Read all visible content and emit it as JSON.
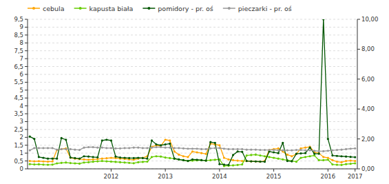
{
  "chart_data": {
    "type": "line",
    "categories": [
      null,
      null,
      null,
      null,
      null,
      null,
      null,
      null,
      null,
      null,
      null,
      null,
      null,
      null,
      null,
      null,
      null,
      null,
      "2012",
      null,
      null,
      null,
      null,
      null,
      null,
      null,
      null,
      null,
      null,
      null,
      "2013",
      null,
      null,
      null,
      null,
      null,
      null,
      null,
      null,
      null,
      null,
      null,
      "2014",
      null,
      null,
      null,
      null,
      null,
      null,
      null,
      null,
      null,
      null,
      null,
      "2015",
      null,
      null,
      null,
      null,
      null,
      null,
      null,
      null,
      null,
      null,
      null,
      "2016",
      null,
      null,
      null,
      null,
      null,
      "2017"
    ],
    "series": [
      {
        "name": "cebula",
        "color": "#FFA500",
        "marker": "circle",
        "values": [
          0.5,
          0.48,
          0.49,
          0.47,
          0.46,
          0.47,
          1.2,
          1.25,
          1.3,
          0.7,
          0.65,
          0.62,
          0.6,
          0.58,
          0.6,
          0.62,
          0.65,
          0.67,
          0.7,
          0.68,
          0.65,
          0.63,
          0.6,
          0.58,
          0.65,
          0.7,
          0.8,
          1.4,
          1.5,
          1.45,
          1.85,
          1.8,
          1.1,
          0.9,
          0.8,
          0.75,
          1.1,
          1.05,
          1.0,
          0.95,
          1.6,
          1.55,
          1.5,
          0.7,
          0.6,
          0.55,
          0.52,
          0.5,
          0.5,
          0.48,
          0.47,
          0.45,
          0.5,
          1.2,
          1.25,
          1.3,
          1.1,
          0.9,
          0.8,
          0.95,
          1.3,
          1.35,
          1.4,
          1.05,
          1.0,
          0.75,
          0.7,
          0.55,
          0.45,
          0.42,
          0.5,
          0.52,
          0.5
        ]
      },
      {
        "name": "kapusta biała",
        "color": "#66CC00",
        "marker": "circle",
        "values": [
          0.3,
          0.28,
          0.29,
          0.27,
          0.26,
          0.27,
          0.35,
          0.38,
          0.4,
          0.37,
          0.35,
          0.33,
          0.4,
          0.42,
          0.45,
          0.48,
          0.5,
          0.48,
          0.46,
          0.44,
          0.42,
          0.4,
          0.38,
          0.36,
          0.42,
          0.44,
          0.46,
          0.75,
          0.8,
          0.78,
          0.72,
          0.68,
          0.65,
          0.6,
          0.55,
          0.5,
          0.52,
          0.54,
          0.55,
          0.53,
          0.55,
          0.58,
          0.6,
          0.18,
          0.2,
          0.22,
          0.25,
          0.28,
          0.85,
          0.88,
          0.9,
          0.85,
          0.8,
          0.75,
          0.7,
          0.65,
          0.6,
          0.55,
          0.5,
          0.45,
          0.7,
          0.75,
          0.8,
          0.85,
          0.55,
          0.55,
          0.58,
          0.28,
          0.26,
          0.25,
          0.3,
          0.32,
          0.35
        ]
      },
      {
        "name": "pomidory - pr. oś",
        "color": "#005500",
        "marker": "circle",
        "values": [
          2.05,
          1.9,
          0.75,
          0.7,
          0.65,
          0.65,
          0.65,
          1.95,
          1.85,
          0.72,
          0.68,
          0.65,
          0.8,
          0.78,
          0.75,
          0.73,
          1.8,
          1.85,
          1.8,
          0.78,
          0.72,
          0.7,
          0.68,
          0.68,
          0.7,
          0.68,
          0.65,
          1.8,
          1.55,
          1.5,
          1.55,
          1.6,
          0.65,
          0.6,
          0.55,
          0.5,
          0.6,
          0.58,
          0.55,
          0.52,
          1.7,
          1.65,
          0.3,
          0.27,
          0.25,
          0.88,
          1.1,
          1.08,
          0.5,
          0.48,
          0.47,
          0.46,
          0.45,
          1.1,
          1.05,
          1.0,
          1.65,
          0.5,
          0.48,
          0.96,
          0.98,
          1.0,
          1.35,
          0.96,
          0.96,
          9.5,
          1.9,
          0.85,
          0.82,
          0.8,
          0.78,
          0.76,
          0.74
        ]
      },
      {
        "name": "pieczarki - pr. oś",
        "color": "#999999",
        "marker": "circle",
        "values": [
          1.18,
          1.32,
          1.32,
          1.32,
          1.32,
          1.32,
          1.22,
          1.25,
          1.25,
          1.25,
          1.22,
          1.2,
          1.35,
          1.38,
          1.38,
          1.35,
          1.35,
          1.32,
          1.32,
          1.3,
          1.3,
          1.32,
          1.32,
          1.35,
          1.35,
          1.32,
          1.32,
          1.35,
          1.38,
          1.38,
          1.35,
          1.35,
          1.32,
          1.32,
          1.3,
          1.28,
          1.28,
          1.28,
          1.25,
          1.25,
          1.3,
          1.32,
          1.32,
          1.28,
          1.25,
          1.25,
          1.25,
          1.25,
          1.22,
          1.22,
          1.22,
          1.2,
          1.2,
          1.2,
          1.2,
          1.18,
          1.18,
          1.18,
          1.18,
          1.2,
          1.2,
          1.18,
          1.18,
          1.15,
          1.12,
          1.12,
          1.15,
          1.18,
          1.2,
          1.22,
          1.25,
          1.28,
          1.3
        ]
      }
    ],
    "ylim": [
      0,
      9.5
    ],
    "yticks": [
      0,
      {
        "value": 0.5,
        "label": "0,5"
      },
      1,
      {
        "value": 1.5,
        "label": "1,5"
      },
      2,
      {
        "value": 2.5,
        "label": "2,5"
      },
      3,
      {
        "value": 3.5,
        "label": "3,5"
      },
      4,
      {
        "value": 4.5,
        "label": "4,5"
      },
      5,
      {
        "value": 5.5,
        "label": "5,5"
      },
      6,
      {
        "value": 6.5,
        "label": "6,5"
      },
      7,
      {
        "value": 7.5,
        "label": "7,5"
      },
      8,
      {
        "value": 8.5,
        "label": "8,5"
      },
      9,
      {
        "value": 9.5,
        "label": "9,5"
      }
    ],
    "y2lim": [
      0,
      10
    ],
    "y2ticks": [
      {
        "value": 0,
        "label": "0,00"
      },
      {
        "value": 2,
        "label": "2,00"
      },
      {
        "value": 4,
        "label": "4,00"
      },
      {
        "value": 6,
        "label": "6,00"
      },
      {
        "value": 8,
        "label": "8,00"
      },
      {
        "value": 10,
        "label": "10,00"
      }
    ],
    "grid": true,
    "legend": "upper left"
  }
}
